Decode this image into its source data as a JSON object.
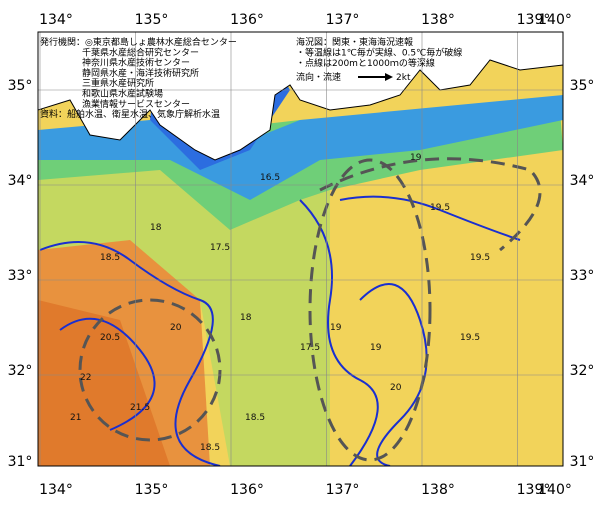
{
  "map": {
    "lon_ticks": [
      {
        "value": 134,
        "label": "134°"
      },
      {
        "value": 135,
        "label": "135°"
      },
      {
        "value": 136,
        "label": "136°"
      },
      {
        "value": 137,
        "label": "137°"
      },
      {
        "value": 138,
        "label": "138°"
      },
      {
        "value": 139,
        "label": "139°"
      },
      {
        "value": 140,
        "label": "140°"
      }
    ],
    "lat_ticks": [
      {
        "value": 35,
        "label": "35°"
      },
      {
        "value": 34,
        "label": "34°"
      },
      {
        "value": 33,
        "label": "33°"
      },
      {
        "value": 32,
        "label": "32°"
      },
      {
        "value": 31,
        "label": "31°"
      }
    ],
    "issuers": [
      "発行機関：◎東京都島しょ農林水産総合センター",
      "千葉県水産総合研究センター",
      "神奈川県水産技術センター",
      "静岡県水産・海洋技術研究所",
      "三重県水産研究所",
      "和歌山県水産試験場",
      "漁業情報サービスセンター",
      "資料：船舶水温、衛星水温、気象庁解析水温"
    ],
    "notes": [
      "海況図：関東・東海海況速報",
      "・等温線は1℃毎が実線、0.5℃毎が破線",
      "・点線は200mと1000ｍの等深線"
    ],
    "current_legend": {
      "label": "流向・流速",
      "speed": "2kt"
    },
    "contour_labels": [
      "18.5",
      "18",
      "17.5",
      "19",
      "19.5",
      "20",
      "20.5",
      "21",
      "21.5",
      "22",
      "18.5",
      "19",
      "17.5",
      "19.5",
      "18",
      "16.5",
      "19",
      "19.5",
      "20",
      "18.5"
    ]
  }
}
